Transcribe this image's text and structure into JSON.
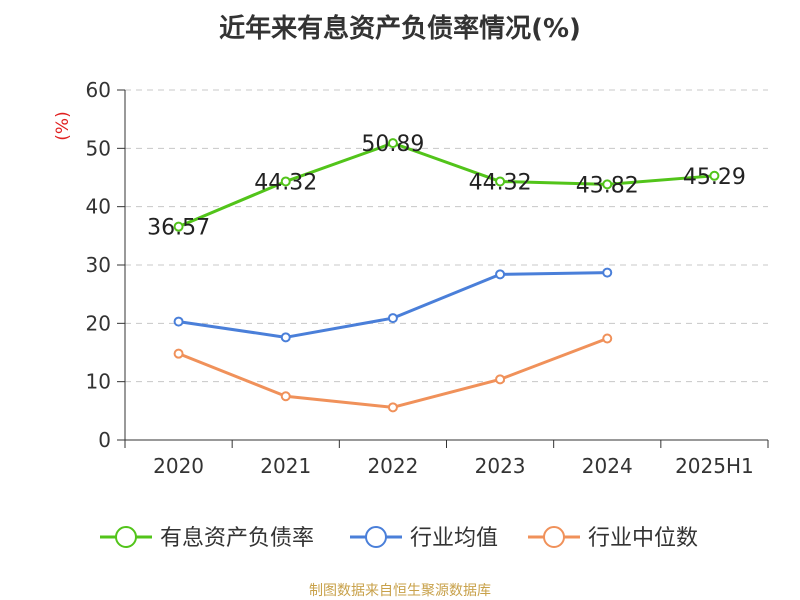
{
  "source": "制图数据来自恒生聚源数据库",
  "chart_data": {
    "type": "line",
    "title": "近年来有息资产负债率情况(%)",
    "ylabel": "(%)",
    "xlabel": "",
    "categories": [
      "2020",
      "2021",
      "2022",
      "2023",
      "2024",
      "2025H1"
    ],
    "ylim": [
      0,
      60
    ],
    "yticks": [
      0,
      10,
      20,
      30,
      40,
      50,
      60
    ],
    "grid": true,
    "legend_position": "bottom",
    "series": [
      {
        "name": "有息资产负债率",
        "color": "#52c41a",
        "show_labels": true,
        "values": [
          36.57,
          44.32,
          50.89,
          44.32,
          43.82,
          45.29
        ]
      },
      {
        "name": "行业均值",
        "color": "#4a7fd9",
        "show_labels": false,
        "values": [
          20.3,
          17.6,
          20.9,
          28.4,
          28.7,
          null
        ]
      },
      {
        "name": "行业中位数",
        "color": "#f0915a",
        "show_labels": false,
        "values": [
          14.8,
          7.5,
          5.6,
          10.4,
          17.4,
          null
        ]
      }
    ]
  }
}
